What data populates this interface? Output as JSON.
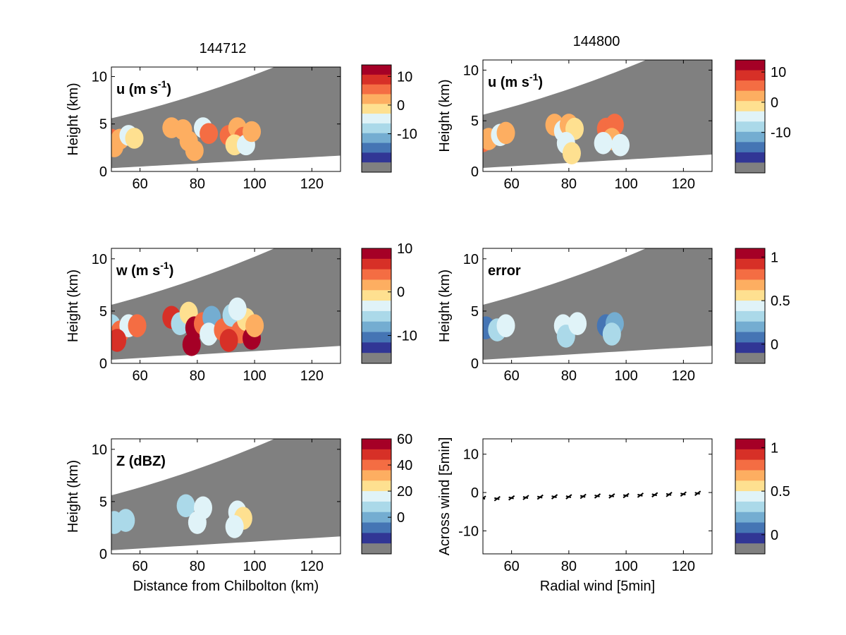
{
  "figure": {
    "titles": [
      "144712",
      "144800"
    ]
  },
  "chart_data": [
    {
      "type": "heatmap",
      "panel": "u",
      "time": "144712",
      "label_main": "u (m s",
      "label_sup": "-1",
      "label_close": ")",
      "xlabel": "",
      "ylabel": "Height (km)",
      "xlim": [
        50,
        130
      ],
      "ylim": [
        0,
        11
      ],
      "xticks": [
        60,
        80,
        100,
        120
      ],
      "yticks": [
        0,
        5,
        10
      ],
      "colorbar": {
        "range": [
          -20,
          14
        ],
        "ticks": [
          10,
          0,
          -10
        ]
      },
      "cells": [
        {
          "x": 50,
          "y": 3.4,
          "v": 4
        },
        {
          "x": 53,
          "y": 3.4,
          "v": 3
        },
        {
          "x": 51,
          "y": 2.6,
          "v": 2
        },
        {
          "x": 56,
          "y": 3.8,
          "v": -6
        },
        {
          "x": 58,
          "y": 3.5,
          "v": -3
        },
        {
          "x": 71,
          "y": 4.6,
          "v": 3
        },
        {
          "x": 75,
          "y": 4.4,
          "v": 2
        },
        {
          "x": 77,
          "y": 3.2,
          "v": 3
        },
        {
          "x": 79,
          "y": 2.2,
          "v": 2
        },
        {
          "x": 82,
          "y": 4.6,
          "v": -4
        },
        {
          "x": 84,
          "y": 4.0,
          "v": 4
        },
        {
          "x": 91,
          "y": 3.8,
          "v": 4
        },
        {
          "x": 94,
          "y": 4.6,
          "v": 2
        },
        {
          "x": 96,
          "y": 3.6,
          "v": 5
        },
        {
          "x": 93,
          "y": 2.8,
          "v": -3
        },
        {
          "x": 97,
          "y": 2.8,
          "v": -6
        },
        {
          "x": 99,
          "y": 4.2,
          "v": 2
        }
      ]
    },
    {
      "type": "heatmap",
      "panel": "u",
      "time": "144800",
      "label_main": "u (m s",
      "label_sup": "-1",
      "label_close": ")",
      "xlabel": "",
      "ylabel": "Height (km)",
      "xlim": [
        50,
        130
      ],
      "ylim": [
        0,
        11
      ],
      "xticks": [
        60,
        80,
        100,
        120
      ],
      "yticks": [
        0,
        5,
        10
      ],
      "colorbar": {
        "range": [
          -20,
          14
        ],
        "ticks": [
          10,
          0,
          -10
        ]
      },
      "cells": [
        {
          "x": 50,
          "y": 3.0,
          "v": 4
        },
        {
          "x": 52,
          "y": 3.2,
          "v": 3
        },
        {
          "x": 56,
          "y": 3.6,
          "v": -6
        },
        {
          "x": 58,
          "y": 3.8,
          "v": 3
        },
        {
          "x": 75,
          "y": 4.6,
          "v": 2
        },
        {
          "x": 78,
          "y": 4.0,
          "v": -4
        },
        {
          "x": 80,
          "y": 4.6,
          "v": 3
        },
        {
          "x": 82,
          "y": 4.2,
          "v": -3
        },
        {
          "x": 79,
          "y": 2.8,
          "v": -6
        },
        {
          "x": 81,
          "y": 1.8,
          "v": -3
        },
        {
          "x": 93,
          "y": 4.2,
          "v": 4
        },
        {
          "x": 96,
          "y": 4.6,
          "v": 5
        },
        {
          "x": 95,
          "y": 3.2,
          "v": 3
        },
        {
          "x": 92,
          "y": 2.8,
          "v": -4
        },
        {
          "x": 98,
          "y": 2.6,
          "v": -6
        }
      ]
    },
    {
      "type": "heatmap",
      "panel": "w",
      "time": "144712",
      "label_main": "w (m s",
      "label_sup": "-1",
      "label_close": ")",
      "xlabel": "",
      "ylabel": "Height (km)",
      "xlim": [
        50,
        130
      ],
      "ylim": [
        0,
        11
      ],
      "xticks": [
        60,
        80,
        100,
        120
      ],
      "yticks": [
        0,
        5,
        10
      ],
      "colorbar": {
        "range": [
          -14,
          10
        ],
        "ticks": [
          10,
          0,
          -10
        ]
      },
      "cells": [
        {
          "x": 50,
          "y": 3.6,
          "v": -6
        },
        {
          "x": 53,
          "y": 3.0,
          "v": 4
        },
        {
          "x": 56,
          "y": 3.6,
          "v": -3
        },
        {
          "x": 59,
          "y": 3.6,
          "v": 3
        },
        {
          "x": 52,
          "y": 2.2,
          "v": 6
        },
        {
          "x": 71,
          "y": 4.4,
          "v": 7
        },
        {
          "x": 74,
          "y": 3.8,
          "v": -6
        },
        {
          "x": 77,
          "y": 4.8,
          "v": -2
        },
        {
          "x": 79,
          "y": 3.4,
          "v": 10
        },
        {
          "x": 78,
          "y": 1.8,
          "v": 9
        },
        {
          "x": 82,
          "y": 3.8,
          "v": 5
        },
        {
          "x": 85,
          "y": 4.4,
          "v": -8
        },
        {
          "x": 84,
          "y": 2.8,
          "v": -4
        },
        {
          "x": 89,
          "y": 3.2,
          "v": 4
        },
        {
          "x": 92,
          "y": 4.6,
          "v": -5
        },
        {
          "x": 95,
          "y": 3.0,
          "v": 3
        },
        {
          "x": 97,
          "y": 4.2,
          "v": -2
        },
        {
          "x": 99,
          "y": 2.4,
          "v": 9
        },
        {
          "x": 91,
          "y": 2.2,
          "v": 6
        },
        {
          "x": 100,
          "y": 3.6,
          "v": 2
        },
        {
          "x": 94,
          "y": 5.2,
          "v": -4
        }
      ]
    },
    {
      "type": "heatmap",
      "panel": "error",
      "time": "144800",
      "label_main": "error",
      "label_sup": "",
      "label_close": "",
      "xlabel": "",
      "ylabel": "Height (km)",
      "xlim": [
        50,
        130
      ],
      "ylim": [
        0,
        11
      ],
      "xticks": [
        60,
        80,
        100,
        120
      ],
      "yticks": [
        0,
        5,
        10
      ],
      "colorbar": {
        "range": [
          -0.1,
          1.1
        ],
        "ticks": [
          1,
          0.5,
          0
        ]
      },
      "cells": [
        {
          "x": 51,
          "y": 3.4,
          "v": 0.12
        },
        {
          "x": 55,
          "y": 3.2,
          "v": 0.32
        },
        {
          "x": 58,
          "y": 3.6,
          "v": 0.5
        },
        {
          "x": 78,
          "y": 3.6,
          "v": 0.45
        },
        {
          "x": 79,
          "y": 2.6,
          "v": 0.3
        },
        {
          "x": 83,
          "y": 3.8,
          "v": 0.4
        },
        {
          "x": 93,
          "y": 3.6,
          "v": 0.1
        },
        {
          "x": 96,
          "y": 3.8,
          "v": 0.15
        },
        {
          "x": 95,
          "y": 2.8,
          "v": 0.3
        }
      ]
    },
    {
      "type": "heatmap",
      "panel": "Z",
      "time": "144712",
      "label_main": "Z (dBZ)",
      "label_sup": "",
      "label_close": "",
      "xlabel": "Distance from Chilbolton (km)",
      "ylabel": "Height (km)",
      "xlim": [
        50,
        130
      ],
      "ylim": [
        0,
        11
      ],
      "xticks": [
        60,
        80,
        100,
        120
      ],
      "yticks": [
        0,
        5,
        10
      ],
      "colorbar": {
        "range": [
          -20,
          60
        ],
        "ticks": [
          60,
          40,
          20,
          0
        ]
      },
      "cells": [
        {
          "x": 51,
          "y": 3.0,
          "v": 8
        },
        {
          "x": 55,
          "y": 3.2,
          "v": 4
        },
        {
          "x": 76,
          "y": 4.6,
          "v": 10
        },
        {
          "x": 80,
          "y": 3.0,
          "v": 18
        },
        {
          "x": 82,
          "y": 4.4,
          "v": 14
        },
        {
          "x": 94,
          "y": 4.0,
          "v": 18
        },
        {
          "x": 96,
          "y": 3.4,
          "v": 22
        },
        {
          "x": 93,
          "y": 2.6,
          "v": 12
        }
      ]
    },
    {
      "type": "scatter",
      "panel": "wind",
      "time": "144800",
      "xlabel": "Radial wind [5min]",
      "ylabel": "Across wind [5min]",
      "xlim": [
        50,
        130
      ],
      "ylim": [
        -16,
        14
      ],
      "xticks": [
        60,
        80,
        100,
        120
      ],
      "yticks": [
        -10,
        0,
        10
      ],
      "colorbar": {
        "range": [
          -0.1,
          1.1
        ],
        "ticks": [
          1,
          0.5,
          0
        ]
      },
      "x": [
        50,
        55,
        60,
        65,
        70,
        75,
        80,
        85,
        90,
        95,
        100,
        105,
        110,
        115,
        120,
        125
      ],
      "y": [
        -1.5,
        -1.6,
        -1.4,
        -1.3,
        -1.2,
        -1.1,
        -1.1,
        -1.0,
        -0.9,
        -0.9,
        -0.8,
        -0.7,
        -0.6,
        -0.5,
        -0.4,
        -0.2
      ]
    }
  ]
}
